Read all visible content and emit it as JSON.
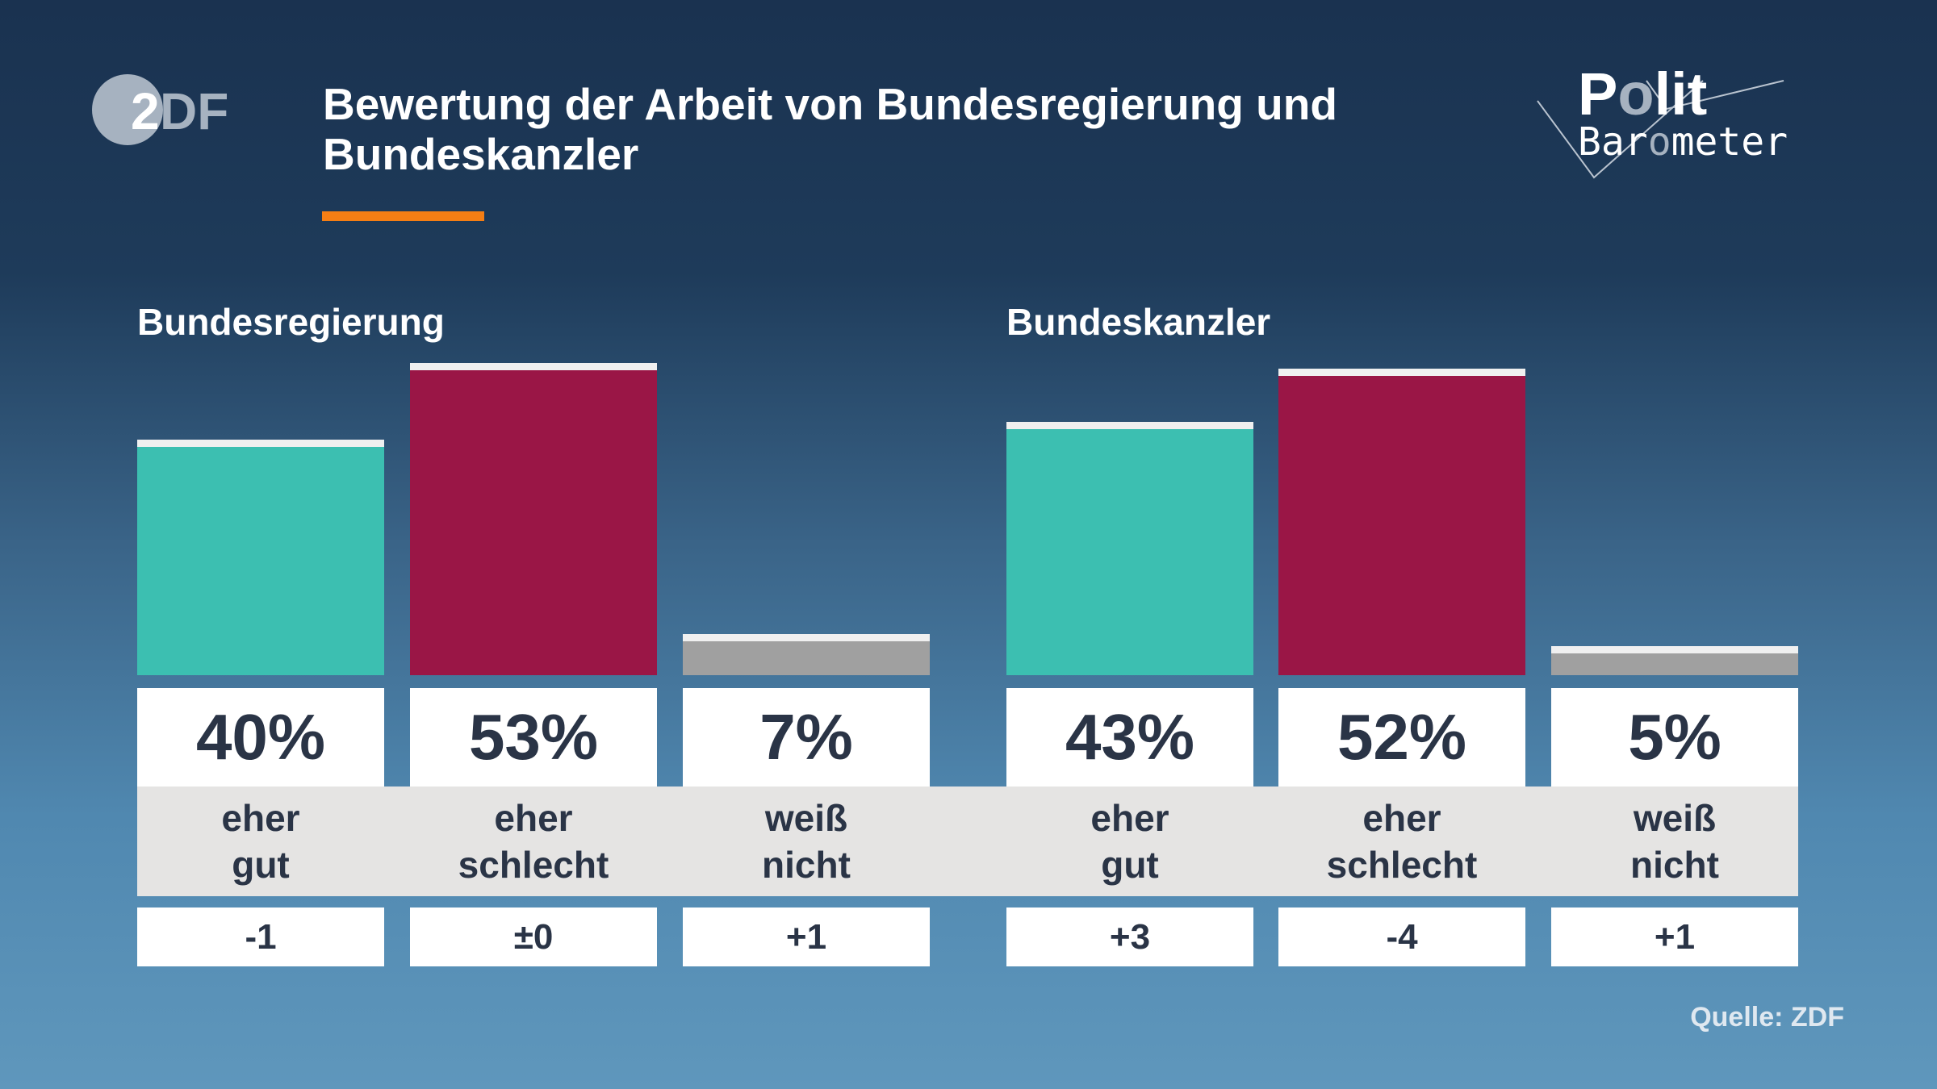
{
  "header": {
    "title": "Bewertung der Arbeit von Bundesregierung und Bundeskanzler",
    "logo_left": "ZDF",
    "logo_right": "Polit Barometer"
  },
  "colors": {
    "positive": "#3cbfb1",
    "negative": "#9a1646",
    "neutral": "#a0a0a0",
    "accent": "#f57e14"
  },
  "chart_data": [
    {
      "type": "bar",
      "title": "Bundesregierung",
      "categories": [
        "eher gut",
        "eher schlecht",
        "weiß nicht"
      ],
      "values": [
        40,
        53,
        7
      ],
      "value_labels": [
        "40%",
        "53%",
        "7%"
      ],
      "changes": [
        "-1",
        "±0",
        "+1"
      ],
      "ylim": [
        0,
        60
      ]
    },
    {
      "type": "bar",
      "title": "Bundeskanzler",
      "categories": [
        "eher gut",
        "eher schlecht",
        "weiß nicht"
      ],
      "values": [
        43,
        52,
        5
      ],
      "value_labels": [
        "43%",
        "52%",
        "5%"
      ],
      "changes": [
        "+3",
        "-4",
        "+1"
      ],
      "ylim": [
        0,
        60
      ]
    }
  ],
  "labels": [
    [
      "eher",
      "gut"
    ],
    [
      "eher",
      "schlecht"
    ],
    [
      "weiß",
      "nicht"
    ]
  ],
  "footer": {
    "source": "Quelle: ZDF"
  }
}
